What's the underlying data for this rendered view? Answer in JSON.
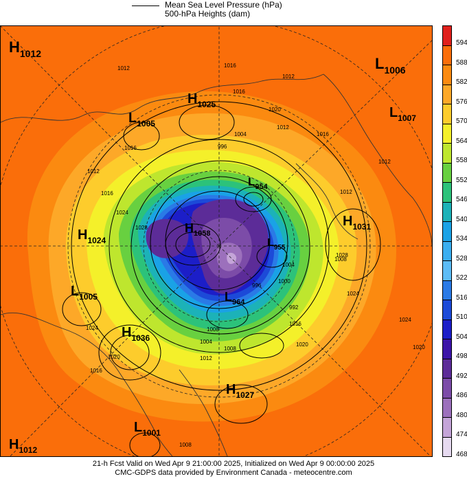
{
  "legend": {
    "line1": "Mean Sea Level Pressure (hPa)",
    "line2": "500-hPa Heights (dam)"
  },
  "colorbar": {
    "labels": [
      "594",
      "588",
      "582",
      "576",
      "570",
      "564",
      "558",
      "552",
      "546",
      "540",
      "534",
      "528",
      "522",
      "516",
      "510",
      "504",
      "498",
      "492",
      "486",
      "480",
      "474",
      "468"
    ],
    "colors": [
      "#e0201c",
      "#fa6e0a",
      "#fb8a10",
      "#fda828",
      "#fdcc2c",
      "#f4f02a",
      "#bee62e",
      "#68d040",
      "#2cc27a",
      "#1cb2b8",
      "#1aa2e6",
      "#3aaef0",
      "#5cbcf6",
      "#2a7ae6",
      "#1c4ad8",
      "#1c1ec8",
      "#3c14a8",
      "#5c2c98",
      "#7c4ca8",
      "#9c70bc",
      "#c4a4d8",
      "#e6daf0"
    ]
  },
  "pressure_centres": [
    {
      "letter": "H",
      "value": "1012"
    },
    {
      "letter": "L",
      "value": "1006"
    },
    {
      "letter": "H",
      "value": "1025"
    },
    {
      "letter": "L",
      "value": "1005"
    },
    {
      "letter": "L",
      "value": "1007"
    },
    {
      "letter": "L",
      "value": "954"
    },
    {
      "letter": "H",
      "value": "1031"
    },
    {
      "letter": "H",
      "value": "1024"
    },
    {
      "letter": "H",
      "value": "1058"
    },
    {
      "letter": "L",
      "value": "955"
    },
    {
      "letter": "L",
      "value": "1005"
    },
    {
      "letter": "L",
      "value": "964"
    },
    {
      "letter": "H",
      "value": "1036"
    },
    {
      "letter": "H",
      "value": "1027"
    },
    {
      "letter": "L",
      "value": "1001"
    },
    {
      "letter": "H",
      "value": "1012"
    }
  ],
  "isobar_labels": [
    "1012",
    "1016",
    "1012",
    "1020",
    "1016",
    "1012",
    "1004",
    "996",
    "1016",
    "1012",
    "1016",
    "1024",
    "1028",
    "1024",
    "1020",
    "1016",
    "1012",
    "1008",
    "1004",
    "1000",
    "996",
    "992",
    "1008",
    "1004",
    "1008",
    "1012",
    "1016",
    "1020",
    "1024",
    "1028",
    "1024",
    "1020",
    "1016",
    "1012",
    "1008"
  ],
  "footer": {
    "line1": "21-h Fcst Valid on Wed Apr  9 21:00:00 2025, Initialized on Wed Apr  9 00:00:00 2025",
    "line2": "CMC-GDPS data provided by Environment Canada - meteocentre.com"
  }
}
